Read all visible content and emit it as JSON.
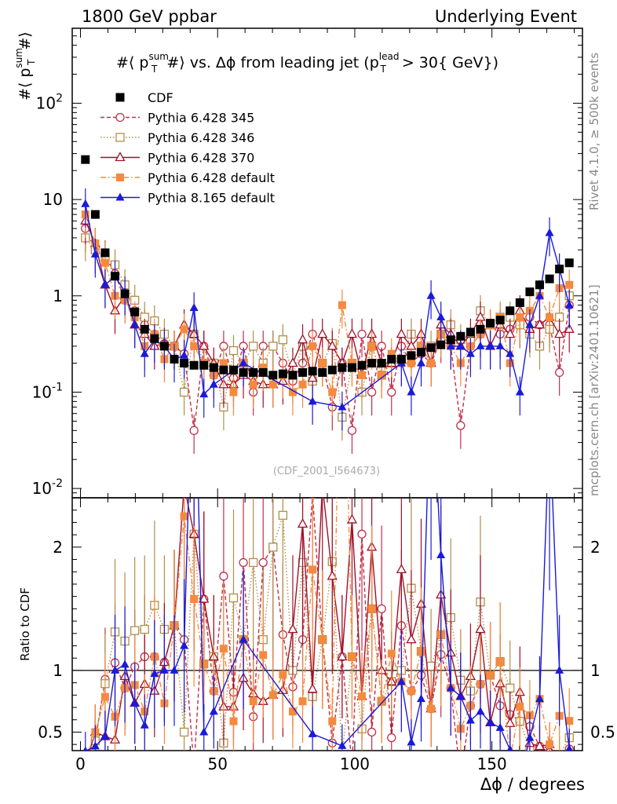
{
  "header": {
    "left": "1800 GeV ppbar",
    "right": "Underlying Event",
    "rivet": "Rivet 4.1.0, ≥ 500k events",
    "mcplots": "mcplots.cern.ch [arXiv:2401.10621]",
    "watermark": "(CDF_2001_I564673)"
  },
  "chart_data": {
    "type": "scatter",
    "title": "#⟨ p_T^sum #⟩ vs. Δϕ from leading jet  (p_T^lead > 30{ GeV})",
    "title_parts": {
      "open": "#⟨ p",
      "sup": "sum",
      "sub": "T",
      "mid": "#⟩ vs. Δϕ from leading jet  (p",
      "sup2": "lead",
      "sub2": "T",
      "end": " > 30{ GeV})"
    },
    "ylabel_parts": {
      "open": "#⟨ p",
      "sup": "sum",
      "sub": "T",
      "close": "#⟩"
    },
    "xlabel": "Δϕ / degrees",
    "ratio_ylabel": "Ratio to CDF",
    "xlim": [
      -3,
      183
    ],
    "ylim": [
      0.008,
      600
    ],
    "yscale": "log",
    "ratio_ylim": [
      0.35,
      2.4
    ],
    "x_ticks": [
      "0",
      "50",
      "100",
      "150"
    ],
    "y_ticks": [
      "10^-2",
      "10^-1",
      "1",
      "10",
      "10^2"
    ],
    "ratio_ticks": [
      "0.5",
      "1",
      "2"
    ],
    "legend_position": "top-left",
    "series": [
      {
        "name": "CDF",
        "color": "#000000",
        "marker": "square-filled",
        "line": "none",
        "x": [
          1.8,
          5.4,
          9,
          12.6,
          16.2,
          19.8,
          23.4,
          27,
          30.6,
          34.2,
          37.8,
          41.4,
          45,
          48.6,
          52.2,
          55.8,
          59.4,
          63,
          66.6,
          70.2,
          73.8,
          77.4,
          81,
          84.6,
          88.2,
          91.8,
          95.4,
          99,
          102.6,
          106.2,
          109.8,
          113.4,
          117,
          120.6,
          124.2,
          127.8,
          131.4,
          135,
          138.6,
          142.2,
          145.8,
          149.4,
          153,
          156.6,
          160.2,
          163.8,
          167.4,
          171,
          174.6,
          178.2
        ],
        "values": [
          26,
          7,
          2.8,
          1.6,
          1.05,
          0.68,
          0.45,
          0.36,
          0.3,
          0.22,
          0.2,
          0.19,
          0.19,
          0.18,
          0.17,
          0.17,
          0.16,
          0.16,
          0.16,
          0.15,
          0.155,
          0.15,
          0.16,
          0.165,
          0.16,
          0.17,
          0.18,
          0.18,
          0.19,
          0.2,
          0.2,
          0.22,
          0.22,
          0.24,
          0.26,
          0.29,
          0.31,
          0.35,
          0.38,
          0.42,
          0.45,
          0.52,
          0.56,
          0.7,
          0.85,
          1.1,
          1.3,
          1.5,
          1.9,
          2.2
        ]
      },
      {
        "name": "Pythia 6.428 345",
        "color": "#c0304a",
        "marker": "circle-open",
        "line": "dashed",
        "x": [
          1.8,
          5.4,
          9,
          12.6,
          16.2,
          19.8,
          23.4,
          27,
          30.6,
          34.2,
          37.8,
          41.4,
          45,
          48.6,
          52.2,
          55.8,
          59.4,
          63,
          66.6,
          70.2,
          73.8,
          77.4,
          81,
          84.6,
          88.2,
          91.8,
          95.4,
          99,
          102.6,
          106.2,
          109.8,
          113.4,
          117,
          120.6,
          124.2,
          127.8,
          131.4,
          135,
          138.6,
          142.2,
          145.8,
          149.4,
          153,
          156.6,
          160.2,
          163.8,
          167.4,
          171,
          174.6,
          178.2
        ],
        "values": [
          5,
          3,
          2.6,
          1.7,
          0.9,
          0.7,
          0.5,
          0.4,
          0.32,
          0.3,
          0.25,
          0.04,
          0.3,
          0.15,
          0.3,
          0.14,
          0.3,
          0.1,
          0.3,
          0.3,
          0.2,
          0.13,
          0.2,
          0.4,
          0.2,
          0.07,
          0.2,
          0.04,
          0.4,
          0.1,
          0.3,
          0.1,
          0.3,
          0.2,
          0.25,
          0.2,
          0.35,
          0.3,
          0.045,
          0.3,
          0.4,
          0.5,
          0.4,
          0.45,
          0.5,
          0.6,
          0.5,
          0.5,
          0.16,
          0.8
        ]
      },
      {
        "name": "Pythia 6.428 346",
        "color": "#b08f4a",
        "marker": "square-open",
        "line": "dotted",
        "x": [
          1.8,
          5.4,
          9,
          12.6,
          16.2,
          19.8,
          23.4,
          27,
          30.6,
          34.2,
          37.8,
          41.4,
          45,
          48.6,
          52.2,
          55.8,
          59.4,
          63,
          66.6,
          70.2,
          73.8,
          77.4,
          81,
          84.6,
          88.2,
          91.8,
          95.4,
          99,
          102.6,
          106.2,
          109.8,
          113.4,
          117,
          120.6,
          124.2,
          127.8,
          131.4,
          135,
          138.6,
          142.2,
          145.8,
          149.4,
          153,
          156.6,
          160.2,
          163.8,
          167.4,
          171,
          174.6,
          178.2
        ],
        "values": [
          4,
          3,
          2.5,
          2.1,
          1.3,
          0.9,
          0.6,
          0.55,
          0.4,
          0.3,
          0.1,
          0.4,
          0.2,
          0.2,
          0.07,
          0.27,
          0.2,
          0.3,
          0.2,
          0.3,
          0.35,
          0.15,
          0.3,
          0.13,
          0.2,
          0.32,
          0.055,
          0.2,
          0.1,
          0.3,
          0.15,
          0.2,
          0.22,
          0.4,
          0.3,
          0.3,
          0.4,
          0.5,
          0.35,
          0.35,
          0.7,
          0.5,
          0.6,
          0.6,
          0.5,
          0.4,
          0.3,
          0.45,
          0.6,
          1
        ]
      },
      {
        "name": "Pythia 6.428 370",
        "color": "#a0102a",
        "marker": "triangle-open",
        "line": "solid",
        "x": [
          1.8,
          5.4,
          9,
          12.6,
          16.2,
          19.8,
          23.4,
          27,
          30.6,
          34.2,
          37.8,
          41.4,
          45,
          48.6,
          52.2,
          55.8,
          59.4,
          63,
          66.6,
          70.2,
          73.8,
          77.4,
          81,
          84.6,
          88.2,
          91.8,
          95.4,
          99,
          102.6,
          106.2,
          109.8,
          113.4,
          117,
          120.6,
          124.2,
          127.8,
          131.4,
          135,
          138.6,
          142.2,
          145.8,
          149.4,
          153,
          156.6,
          160.2,
          163.8,
          167.4,
          171,
          174.6,
          178.2
        ],
        "values": [
          6,
          3.5,
          1.3,
          0.7,
          1,
          0.5,
          0.4,
          0.3,
          0.32,
          0.3,
          0.5,
          0.4,
          0.3,
          0.2,
          0.12,
          0.12,
          0.15,
          0.13,
          0.12,
          0.12,
          0.13,
          0.2,
          0.35,
          0.14,
          0.4,
          0.3,
          0.2,
          0.4,
          0.15,
          0.4,
          0.2,
          0.2,
          0.4,
          0.3,
          0.4,
          0.2,
          0.5,
          0.4,
          0.3,
          0.4,
          0.6,
          0.3,
          0.5,
          0.4,
          0.7,
          0.45,
          0.5,
          0.6,
          0.4,
          0.45
        ]
      },
      {
        "name": "Pythia 6.428 default",
        "color": "#f58a3e",
        "marker": "square-filled",
        "line": "dashdot",
        "x": [
          1.8,
          5.4,
          9,
          12.6,
          16.2,
          19.8,
          23.4,
          27,
          30.6,
          34.2,
          37.8,
          41.4,
          45,
          48.6,
          52.2,
          55.8,
          59.4,
          63,
          66.6,
          70.2,
          73.8,
          77.4,
          81,
          84.6,
          88.2,
          91.8,
          95.4,
          99,
          102.6,
          106.2,
          109.8,
          113.4,
          117,
          120.6,
          124.2,
          127.8,
          131.4,
          135,
          138.6,
          142.2,
          145.8,
          149.4,
          153,
          156.6,
          160.2,
          163.8,
          167.4,
          171,
          174.6,
          178.2
        ],
        "values": [
          7,
          3.5,
          2.2,
          1,
          0.9,
          0.6,
          0.3,
          0.4,
          0.22,
          0.3,
          0.45,
          0.3,
          0.2,
          0.15,
          0.2,
          0.1,
          0.2,
          0.12,
          0.18,
          0.12,
          0.15,
          0.1,
          0.12,
          0.3,
          0.2,
          0.1,
          0.8,
          0.2,
          0.15,
          0.3,
          0.15,
          0.25,
          0.2,
          0.2,
          0.3,
          0.2,
          0.4,
          0.3,
          0.2,
          0.3,
          0.4,
          0.5,
          0.6,
          0.2,
          0.6,
          0.7,
          1,
          0.6,
          1.2,
          1.3
        ]
      },
      {
        "name": "Pythia 8.165 default",
        "color": "#1a1ad8",
        "marker": "triangle-filled",
        "line": "solid",
        "x": [
          1.8,
          5.4,
          9,
          12.6,
          16.2,
          19.8,
          23.4,
          27,
          30.6,
          34.2,
          37.8,
          41.4,
          45,
          48.6,
          59.4,
          84.6,
          95.4,
          117,
          120.6,
          124.2,
          127.8,
          131.4,
          135,
          138.6,
          142.2,
          145.8,
          149.4,
          153,
          156.6,
          160.2,
          163.8,
          167.4,
          171,
          174.6,
          178.2
        ],
        "values": [
          9,
          2.7,
          1.3,
          1.6,
          1.1,
          0.5,
          0.25,
          0.35,
          0.3,
          0.22,
          0.24,
          0.75,
          0.095,
          0.12,
          0.2,
          0.08,
          0.07,
          0.2,
          0.1,
          0.2,
          1,
          0.6,
          0.3,
          0.3,
          0.25,
          0.3,
          0.3,
          0.3,
          0.25,
          0.1,
          0.5,
          1,
          4.5,
          1.9,
          0.8
        ]
      }
    ]
  }
}
